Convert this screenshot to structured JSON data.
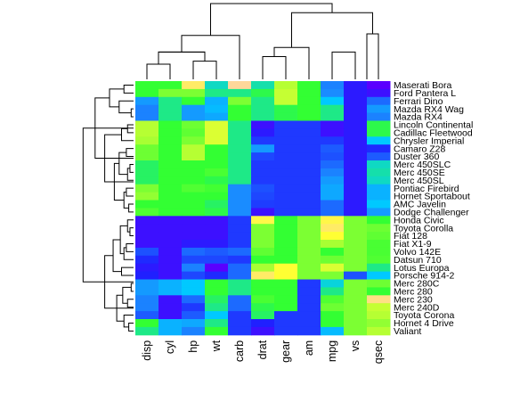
{
  "chart_data": {
    "type": "heatmap",
    "title": "",
    "xlabel": "",
    "ylabel": "",
    "colors": {
      "low": "#2020ff",
      "mid_low": "#1a8cff",
      "mid": "#00c9ff",
      "mid_high": "#33ff33",
      "high": "#ffff33",
      "peak": "#ffd79a",
      "extreme_low": "#5a00ff"
    },
    "columns": [
      "disp",
      "cyl",
      "hp",
      "wt",
      "carb",
      "drat",
      "gear",
      "am",
      "mpg",
      "vs",
      "qsec"
    ],
    "rows": [
      "Maserati Bora",
      "Ford Pantera L",
      "Ferrari Dino",
      "Mazda RX4 Wag",
      "Mazda RX4",
      "Lincoln Continental",
      "Cadillac Fleetwood",
      "Chrysler Imperial",
      "Camaro Z28",
      "Duster 360",
      "Merc 450SLC",
      "Merc 450SE",
      "Merc 450SL",
      "Pontiac Firebird",
      "Hornet Sportabout",
      "AMC Javelin",
      "Dodge Challenger",
      "Honda Civic",
      "Toyota Corolla",
      "Fiat 128",
      "Fiat X1-9",
      "Volvo 142E",
      "Datsun 710",
      "Lotus Europa",
      "Porsche 914-2",
      "Merc 280C",
      "Merc 280",
      "Merc 230",
      "Merc 240D",
      "Toyota Corona",
      "Hornet 4 Drive",
      "Valiant"
    ],
    "values": [
      [
        0.62,
        0.62,
        0.95,
        0.5,
        1.0,
        0.52,
        0.8,
        0.62,
        0.3,
        0.08,
        0.0
      ],
      [
        0.62,
        0.72,
        0.72,
        0.55,
        0.55,
        0.6,
        0.82,
        0.62,
        0.32,
        0.08,
        0.05
      ],
      [
        0.35,
        0.55,
        0.62,
        0.4,
        0.72,
        0.55,
        0.82,
        0.62,
        0.45,
        0.08,
        0.25
      ],
      [
        0.3,
        0.55,
        0.35,
        0.42,
        0.62,
        0.55,
        0.6,
        0.62,
        0.55,
        0.08,
        0.35
      ],
      [
        0.3,
        0.55,
        0.35,
        0.38,
        0.62,
        0.55,
        0.6,
        0.62,
        0.55,
        0.08,
        0.3
      ],
      [
        0.8,
        0.62,
        0.7,
        0.85,
        0.55,
        0.05,
        0.15,
        0.15,
        0.05,
        0.08,
        0.6
      ],
      [
        0.8,
        0.62,
        0.68,
        0.85,
        0.55,
        0.08,
        0.15,
        0.15,
        0.05,
        0.08,
        0.6
      ],
      [
        0.78,
        0.62,
        0.72,
        0.85,
        0.55,
        0.15,
        0.15,
        0.15,
        0.15,
        0.08,
        0.45
      ],
      [
        0.7,
        0.62,
        0.8,
        0.62,
        0.55,
        0.35,
        0.15,
        0.15,
        0.22,
        0.08,
        0.12
      ],
      [
        0.7,
        0.62,
        0.8,
        0.62,
        0.55,
        0.18,
        0.15,
        0.15,
        0.2,
        0.08,
        0.22
      ],
      [
        0.58,
        0.62,
        0.62,
        0.62,
        0.55,
        0.15,
        0.15,
        0.15,
        0.25,
        0.08,
        0.5
      ],
      [
        0.58,
        0.62,
        0.62,
        0.65,
        0.55,
        0.15,
        0.15,
        0.15,
        0.3,
        0.08,
        0.52
      ],
      [
        0.58,
        0.62,
        0.62,
        0.6,
        0.55,
        0.15,
        0.15,
        0.15,
        0.35,
        0.08,
        0.5
      ],
      [
        0.72,
        0.62,
        0.66,
        0.64,
        0.32,
        0.2,
        0.15,
        0.15,
        0.38,
        0.08,
        0.4
      ],
      [
        0.75,
        0.62,
        0.62,
        0.62,
        0.32,
        0.18,
        0.15,
        0.15,
        0.38,
        0.08,
        0.4
      ],
      [
        0.62,
        0.62,
        0.62,
        0.58,
        0.32,
        0.16,
        0.15,
        0.15,
        0.25,
        0.08,
        0.45
      ],
      [
        0.66,
        0.62,
        0.62,
        0.6,
        0.32,
        0.05,
        0.15,
        0.15,
        0.25,
        0.08,
        0.35
      ],
      [
        0.05,
        0.05,
        0.05,
        0.05,
        0.15,
        0.92,
        0.62,
        0.72,
        0.92,
        0.72,
        0.62
      ],
      [
        0.05,
        0.05,
        0.05,
        0.05,
        0.15,
        0.72,
        0.62,
        0.72,
        0.95,
        0.72,
        0.7
      ],
      [
        0.05,
        0.05,
        0.05,
        0.05,
        0.15,
        0.72,
        0.62,
        0.72,
        0.9,
        0.72,
        0.68
      ],
      [
        0.05,
        0.05,
        0.08,
        0.08,
        0.15,
        0.72,
        0.62,
        0.72,
        0.78,
        0.72,
        0.65
      ],
      [
        0.2,
        0.05,
        0.25,
        0.22,
        0.25,
        0.68,
        0.62,
        0.72,
        0.62,
        0.72,
        0.65
      ],
      [
        0.12,
        0.05,
        0.18,
        0.18,
        0.15,
        0.62,
        0.62,
        0.72,
        0.7,
        0.72,
        0.66
      ],
      [
        0.08,
        0.05,
        0.3,
        0.0,
        0.25,
        0.78,
        0.9,
        0.72,
        0.85,
        0.72,
        0.55
      ],
      [
        0.1,
        0.05,
        0.18,
        0.12,
        0.25,
        0.95,
        0.9,
        0.72,
        0.72,
        0.2,
        0.45
      ],
      [
        0.35,
        0.4,
        0.45,
        0.62,
        0.55,
        0.62,
        0.62,
        0.15,
        0.48,
        0.72,
        0.7
      ],
      [
        0.35,
        0.4,
        0.45,
        0.62,
        0.55,
        0.62,
        0.62,
        0.15,
        0.55,
        0.72,
        0.62
      ],
      [
        0.3,
        0.05,
        0.25,
        0.58,
        0.25,
        0.65,
        0.62,
        0.15,
        0.66,
        0.72,
        0.98
      ],
      [
        0.3,
        0.05,
        0.15,
        0.55,
        0.25,
        0.6,
        0.62,
        0.15,
        0.7,
        0.72,
        0.82
      ],
      [
        0.22,
        0.05,
        0.22,
        0.45,
        0.15,
        0.58,
        0.15,
        0.15,
        0.62,
        0.72,
        0.8
      ],
      [
        0.62,
        0.4,
        0.38,
        0.55,
        0.15,
        0.1,
        0.15,
        0.15,
        0.62,
        0.72,
        0.75
      ],
      [
        0.55,
        0.4,
        0.3,
        0.62,
        0.15,
        0.05,
        0.15,
        0.15,
        0.42,
        0.72,
        0.8
      ]
    ],
    "row_dendrogram": [
      [
        0,
        1,
        0.08
      ],
      [
        3,
        4,
        0.02
      ],
      [
        2,
        3.5,
        0.12
      ],
      [
        0.5,
        2.75,
        0.2
      ],
      [
        5,
        6,
        0.05
      ],
      [
        7,
        5.5,
        0.1
      ],
      [
        8,
        9,
        0.06
      ],
      [
        10,
        11,
        0.03
      ],
      [
        10.5,
        12,
        0.05
      ],
      [
        8.5,
        11.25,
        0.12
      ],
      [
        13,
        14,
        0.06
      ],
      [
        15,
        16,
        0.04
      ],
      [
        13.5,
        15.5,
        0.08
      ],
      [
        9.875,
        14.5,
        0.16
      ],
      [
        6.25,
        12.19,
        0.24
      ],
      [
        1.625,
        9.22,
        0.32
      ],
      [
        18,
        19,
        0.03
      ],
      [
        17,
        18.5,
        0.05
      ],
      [
        20,
        21,
        0.06
      ],
      [
        20.5,
        22,
        0.08
      ],
      [
        17.75,
        21.25,
        0.11
      ],
      [
        23,
        24,
        0.1
      ],
      [
        19.5,
        23.5,
        0.17
      ],
      [
        25,
        26,
        0.02
      ],
      [
        27,
        28,
        0.05
      ],
      [
        25.5,
        27.5,
        0.09
      ],
      [
        30,
        31,
        0.04
      ],
      [
        29,
        30.5,
        0.08
      ],
      [
        26.5,
        29.75,
        0.14
      ],
      [
        21.5,
        28.13,
        0.24
      ],
      [
        5.42,
        24.81,
        0.42
      ]
    ],
    "col_dendrogram": [
      [
        0,
        1,
        0.2
      ],
      [
        2,
        3,
        0.24
      ],
      [
        0.5,
        2.5,
        0.36
      ],
      [
        0.5,
        2.5,
        0.36
      ],
      [
        5,
        6,
        0.3
      ],
      [
        5.5,
        7,
        0.42
      ],
      [
        8,
        9,
        0.36
      ],
      [
        9.5,
        10,
        0.6
      ],
      [
        6.25,
        9.75,
        0.88
      ],
      [
        1.5,
        4,
        0.58
      ],
      [
        2.75,
        8,
        1.0
      ]
    ]
  }
}
